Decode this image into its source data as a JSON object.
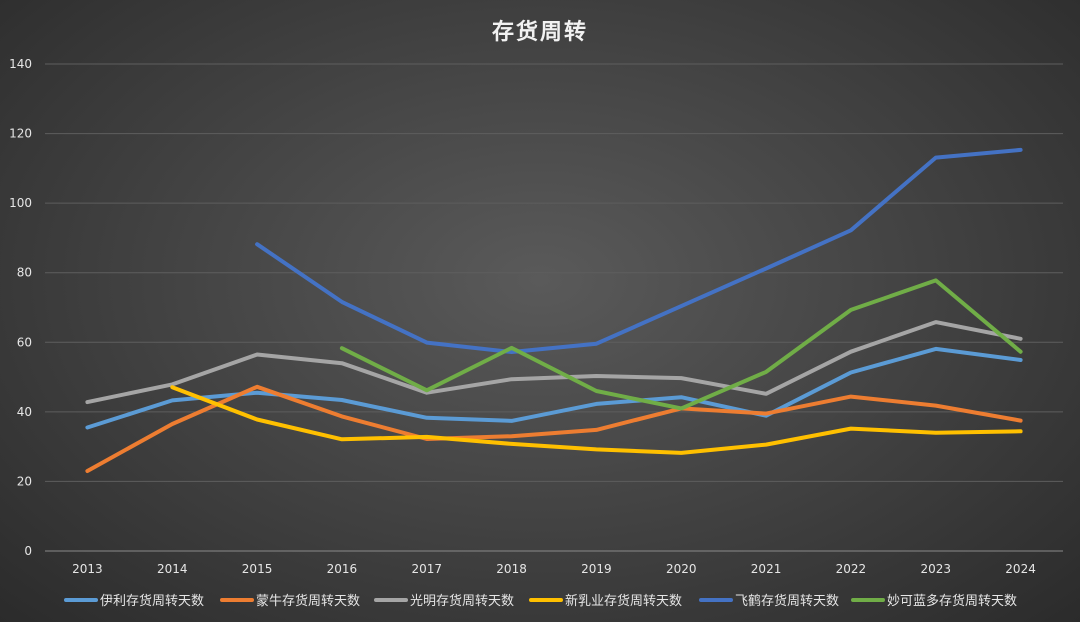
{
  "chart_data": {
    "type": "line",
    "title": "存货周转",
    "xlabel": "",
    "ylabel": "",
    "categories": [
      "2013",
      "2014",
      "2015",
      "2016",
      "2017",
      "2018",
      "2019",
      "2020",
      "2021",
      "2022",
      "2023",
      "2024"
    ],
    "ylim": [
      0,
      140
    ],
    "yticks": [
      0,
      20,
      40,
      60,
      80,
      100,
      120,
      140
    ],
    "grid": "horizontal",
    "legend_position": "bottom",
    "series": [
      {
        "name": "伊利存货周转天数",
        "color": "#5b9bd5",
        "values": [
          35.5,
          43.3,
          45.5,
          43.4,
          38.3,
          37.4,
          42.3,
          44.2,
          38.9,
          51.3,
          58.1,
          54.9
        ]
      },
      {
        "name": "蒙牛存货周转天数",
        "color": "#ed7d31",
        "values": [
          23.0,
          36.5,
          47.2,
          38.7,
          32.2,
          33.0,
          34.8,
          41.0,
          39.5,
          44.4,
          41.8,
          37.5
        ]
      },
      {
        "name": "光明存货周转天数",
        "color": "#a5a5a5",
        "values": [
          42.8,
          47.9,
          56.5,
          54.0,
          45.5,
          49.4,
          50.3,
          49.7,
          45.2,
          57.3,
          65.8,
          61.0
        ]
      },
      {
        "name": "新乳业存货周转天数",
        "color": "#ffc000",
        "values": [
          null,
          47.1,
          37.8,
          32.1,
          32.8,
          30.8,
          29.2,
          28.2,
          30.6,
          35.2,
          34.0,
          34.4
        ]
      },
      {
        "name": "飞鹤存货周转天数",
        "color": "#4472c4",
        "values": [
          null,
          null,
          88.2,
          71.6,
          59.9,
          57.2,
          59.6,
          70.4,
          81.2,
          92.2,
          113.1,
          115.3
        ]
      },
      {
        "name": "妙可蓝多存货周转天数",
        "color": "#70ad47",
        "values": [
          null,
          null,
          null,
          58.3,
          46.2,
          58.4,
          46.0,
          41.0,
          51.5,
          69.3,
          77.8,
          57.3
        ]
      }
    ]
  }
}
